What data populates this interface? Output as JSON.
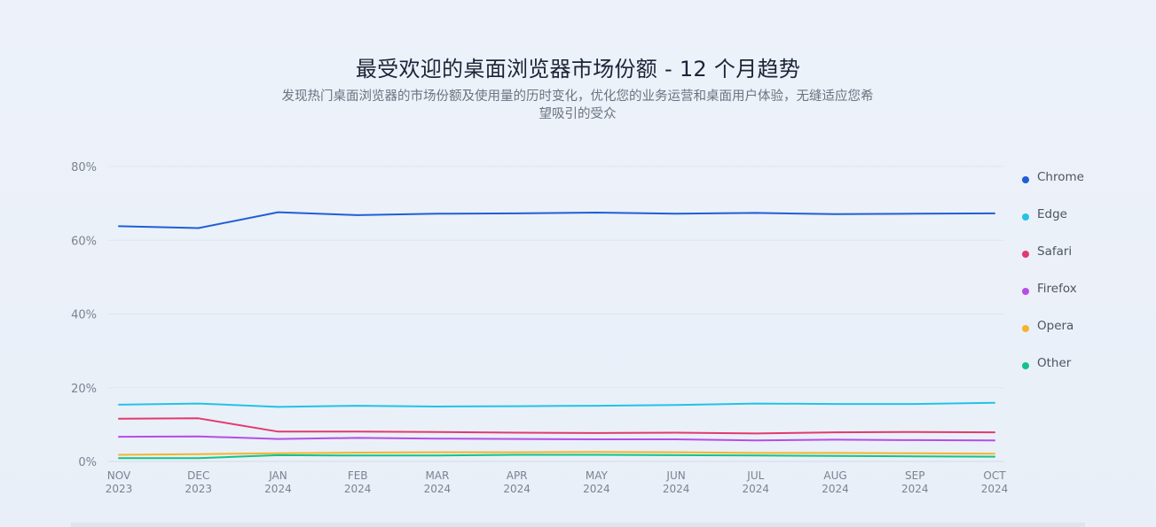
{
  "header": {
    "title": "最受欢迎的桌面浏览器市场份额 - 12 个月趋势",
    "subtitle_line1": "发现热门桌面浏览器的市场份额及使用量的历时变化，优化您的业务运营和桌面用户体验，无缝适应您希",
    "subtitle_line2": "望吸引的受众"
  },
  "chart_data": {
    "type": "line",
    "title": "最受欢迎的桌面浏览器市场份额 - 12 个月趋势",
    "xlabel": "",
    "ylabel": "",
    "x": [
      [
        "NOV",
        "2023"
      ],
      [
        "DEC",
        "2023"
      ],
      [
        "JAN",
        "2024"
      ],
      [
        "FEB",
        "2024"
      ],
      [
        "MAR",
        "2024"
      ],
      [
        "APR",
        "2024"
      ],
      [
        "MAY",
        "2024"
      ],
      [
        "JUN",
        "2024"
      ],
      [
        "JUL",
        "2024"
      ],
      [
        "AUG",
        "2024"
      ],
      [
        "SEP",
        "2024"
      ],
      [
        "OCT",
        "2024"
      ]
    ],
    "ylim": [
      0,
      80
    ],
    "yticks": [
      0,
      20,
      40,
      60,
      80
    ],
    "ytick_labels": [
      "0%",
      "20%",
      "40%",
      "60%",
      "80%"
    ],
    "grid": true,
    "legend_position": "right",
    "series": [
      {
        "name": "Chrome",
        "color": "#1f5fd6",
        "values": [
          63.8,
          63.3,
          67.6,
          66.8,
          67.2,
          67.3,
          67.5,
          67.2,
          67.4,
          67.1,
          67.2,
          67.3
        ]
      },
      {
        "name": "Edge",
        "color": "#22c3e6",
        "values": [
          15.4,
          15.7,
          14.8,
          15.1,
          14.9,
          15.0,
          15.1,
          15.3,
          15.7,
          15.6,
          15.6,
          15.9
        ]
      },
      {
        "name": "Safari",
        "color": "#e23a6e",
        "values": [
          11.6,
          11.7,
          8.1,
          8.1,
          8.0,
          7.8,
          7.7,
          7.8,
          7.6,
          7.9,
          8.0,
          7.9
        ]
      },
      {
        "name": "Firefox",
        "color": "#b54de6",
        "values": [
          6.7,
          6.8,
          6.1,
          6.4,
          6.2,
          6.1,
          6.0,
          6.0,
          5.7,
          5.9,
          5.8,
          5.7
        ]
      },
      {
        "name": "Opera",
        "color": "#f4b42c",
        "values": [
          1.8,
          2.0,
          2.2,
          2.4,
          2.5,
          2.5,
          2.6,
          2.5,
          2.3,
          2.3,
          2.2,
          2.1
        ]
      },
      {
        "name": "Other",
        "color": "#13c28c",
        "values": [
          0.9,
          0.9,
          1.7,
          1.6,
          1.6,
          1.8,
          1.8,
          1.7,
          1.6,
          1.5,
          1.4,
          1.3
        ]
      }
    ]
  }
}
